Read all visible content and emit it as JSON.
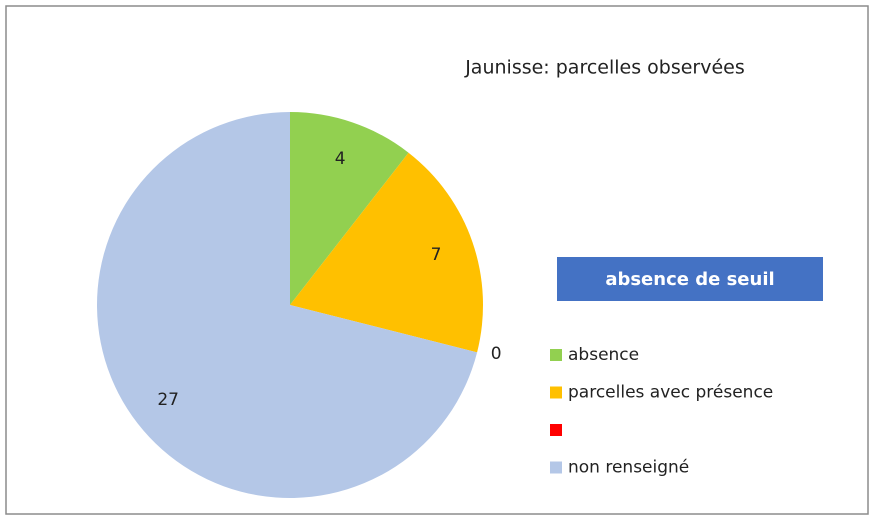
{
  "chart_data": {
    "type": "pie",
    "title": "Jaunisse: parcelles observées",
    "annotation": "absence de seuil",
    "categories": [
      "absence",
      "parcelles avec présence",
      null,
      "non renseigné"
    ],
    "values": [
      4,
      7,
      0,
      27
    ],
    "colors": [
      "#92d050",
      "#ffc000",
      "#ff0000",
      "#b4c7e7"
    ],
    "legend": "right"
  }
}
